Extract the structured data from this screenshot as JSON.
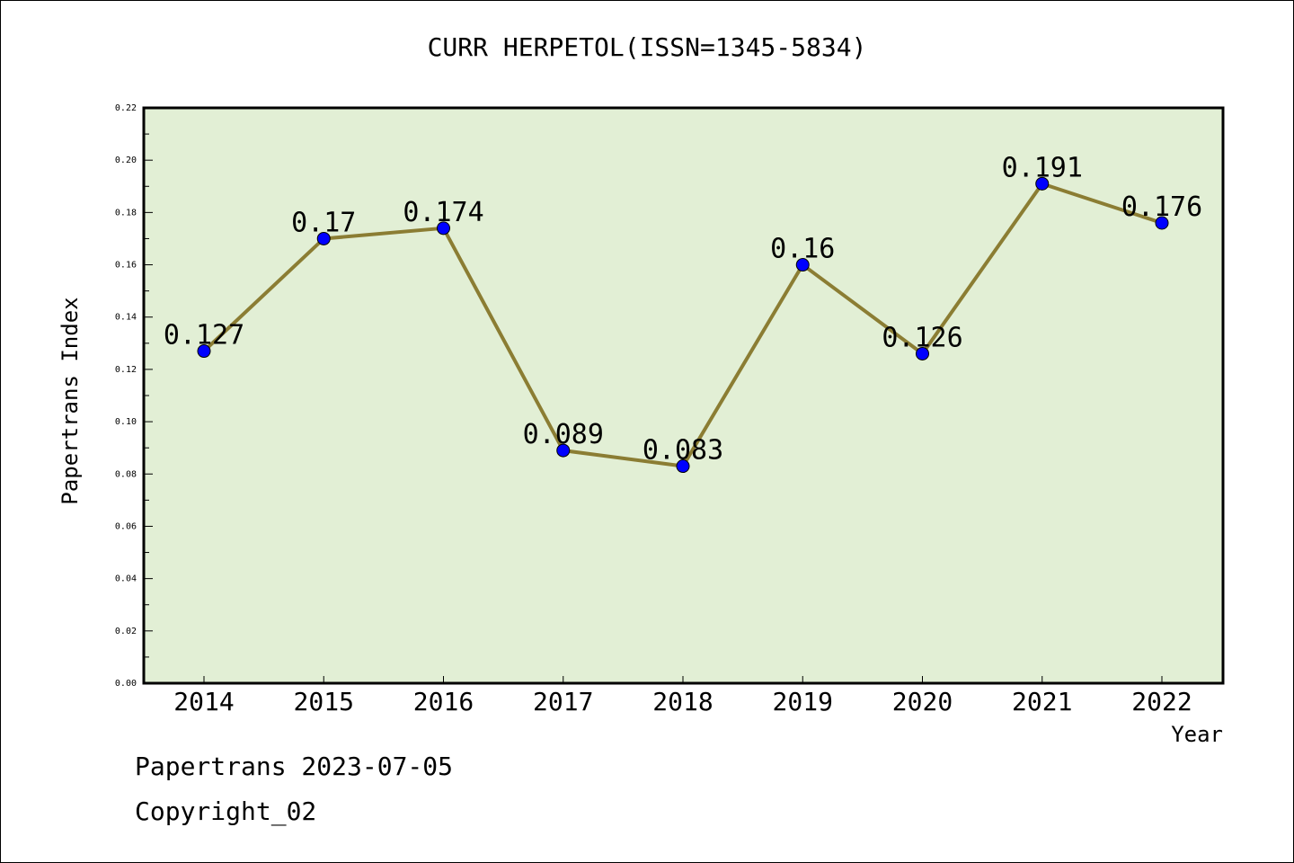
{
  "footer": {
    "line1": "Papertrans 2023-07-05",
    "line2": "Copyright_02"
  },
  "chart_data": {
    "type": "line",
    "title": "CURR HERPETOL(ISSN=1345-5834)",
    "xlabel": "Year",
    "ylabel": "Papertrans Index",
    "x": [
      2014,
      2015,
      2016,
      2017,
      2018,
      2019,
      2020,
      2021,
      2022
    ],
    "y_tick_labels": [
      "0.00",
      "0.02",
      "0.04",
      "0.06",
      "0.08",
      "0.10",
      "0.12",
      "0.14",
      "0.16",
      "0.18",
      "0.20",
      "0.22"
    ],
    "ylim": [
      0,
      0.22
    ],
    "series": [
      {
        "values": [
          0.127,
          0.17,
          0.174,
          0.089,
          0.083,
          0.16,
          0.126,
          0.191,
          0.176
        ],
        "labels": [
          "0.127",
          "0.17",
          "0.174",
          "0.089",
          "0.083",
          "0.16",
          "0.126",
          "0.191",
          "0.176"
        ]
      }
    ],
    "grid": false,
    "colors": {
      "plot_background": "#e2efd5",
      "line": "#8b7d33",
      "marker": "#0000ff"
    }
  }
}
